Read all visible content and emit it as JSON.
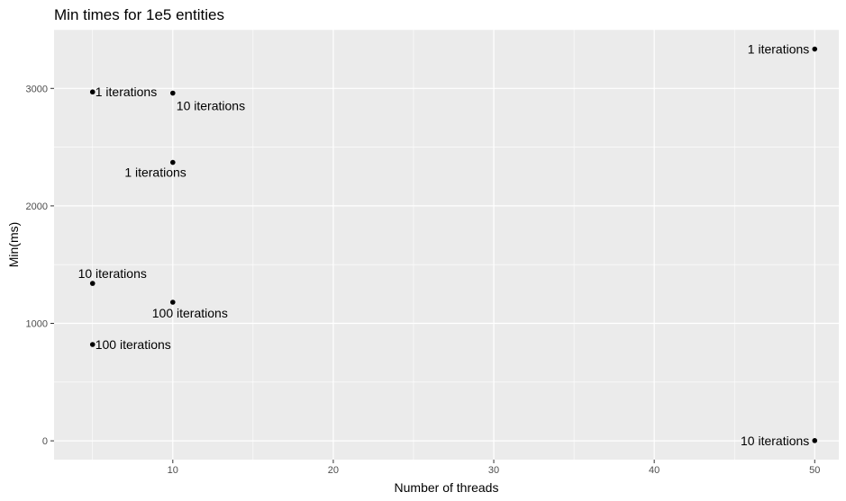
{
  "chart_data": {
    "type": "scatter",
    "title": "Min times for 1e5 entities",
    "xlabel": "Number of threads",
    "ylabel": "Min(ms)",
    "xlim": [
      2.6,
      51.5
    ],
    "ylim": [
      -160,
      3500
    ],
    "x_ticks": [
      10,
      20,
      30,
      40,
      50
    ],
    "y_ticks": [
      0,
      1000,
      2000,
      3000
    ],
    "x_tick_labels": [
      "10",
      "20",
      "30",
      "40",
      "50"
    ],
    "y_tick_labels": [
      "0",
      "1000",
      "2000",
      "3000"
    ],
    "grid": true,
    "point_color": "#000000",
    "panel_background": "#ebebeb",
    "grid_color": "#ffffff",
    "points": [
      {
        "x": 5,
        "y": 2970,
        "label": "1 iterations",
        "label_pos": "right"
      },
      {
        "x": 10,
        "y": 2960,
        "label": "10 iterations",
        "label_pos": "below-right"
      },
      {
        "x": 10,
        "y": 2370,
        "label": "1 iterations",
        "label_pos": "below-left"
      },
      {
        "x": 5,
        "y": 1340,
        "label": "10 iterations",
        "label_pos": "above-center"
      },
      {
        "x": 10,
        "y": 1180,
        "label": "100 iterations",
        "label_pos": "below-center"
      },
      {
        "x": 5,
        "y": 820,
        "label": "100 iterations",
        "label_pos": "right"
      },
      {
        "x": 50,
        "y": 3335,
        "label": "1 iterations",
        "label_pos": "left"
      },
      {
        "x": 50,
        "y": 2,
        "label": "10 iterations",
        "label_pos": "left"
      }
    ]
  }
}
